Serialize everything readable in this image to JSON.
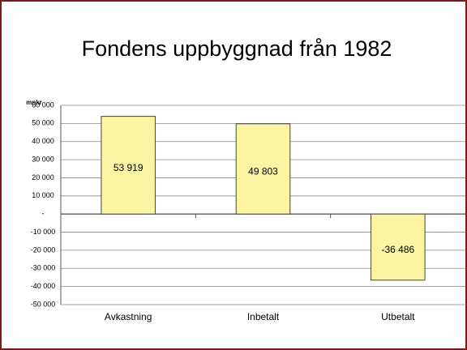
{
  "chart_data": {
    "type": "bar",
    "title": "Fondens uppbyggnad från 1982",
    "y_label": "mnkr",
    "categories": [
      "Avkastning",
      "Inbetalt",
      "Utbetalt"
    ],
    "values": [
      53919,
      49803,
      -36486
    ],
    "value_labels": [
      "53 919",
      "49 803",
      "-36 486"
    ],
    "color": "#fbf5a3",
    "ylim": [
      -50000,
      60000
    ],
    "yticks": [
      {
        "value": 60000,
        "label": "60 000"
      },
      {
        "value": 50000,
        "label": "50 000"
      },
      {
        "value": 40000,
        "label": "40 000"
      },
      {
        "value": 30000,
        "label": "30 000"
      },
      {
        "value": 20000,
        "label": "20 000"
      },
      {
        "value": 10000,
        "label": "10 000"
      },
      {
        "value": 0,
        "label": "-"
      },
      {
        "value": -10000,
        "label": "-10 000"
      },
      {
        "value": -20000,
        "label": "-20 000"
      },
      {
        "value": -30000,
        "label": "-30 000"
      },
      {
        "value": -40000,
        "label": "-40 000"
      },
      {
        "value": -50000,
        "label": "-50 000"
      }
    ],
    "grid": true
  }
}
